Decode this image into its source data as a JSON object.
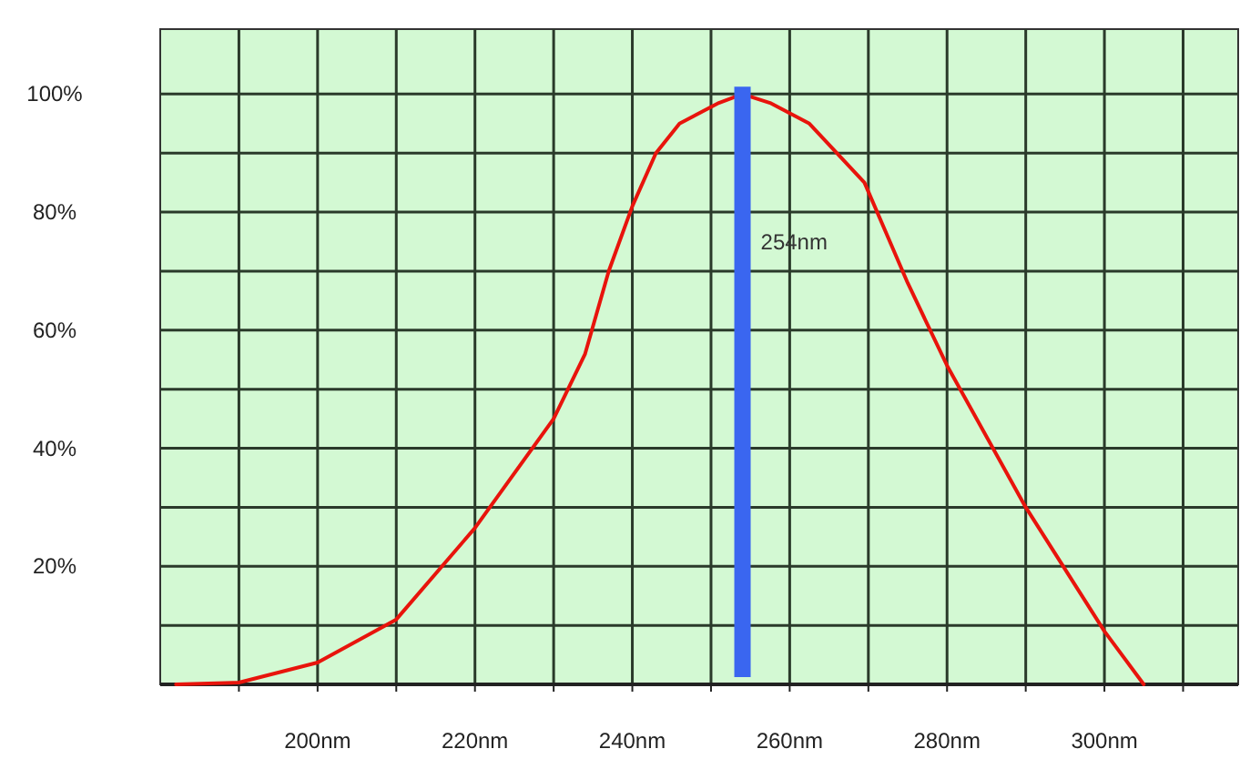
{
  "chart_data": {
    "type": "line",
    "x": [
      182,
      190,
      200,
      210,
      220,
      230,
      234,
      237,
      240,
      243,
      246,
      251,
      254,
      257.5,
      262.5,
      269.5,
      275,
      280,
      290,
      300,
      305
    ],
    "series": [
      {
        "color": "#e8140c",
        "values": [
          0,
          0.3,
          3.7,
          11,
          26.5,
          45,
          56,
          70,
          81,
          90,
          95,
          98.5,
          100,
          98.5,
          95,
          85,
          68,
          54,
          30,
          9,
          0
        ]
      }
    ],
    "xlim": [
      180,
      317
    ],
    "ylim": [
      0,
      111
    ],
    "xticks": [
      {
        "value": 190,
        "label": null
      },
      {
        "value": 200,
        "label": "200nm"
      },
      {
        "value": 210,
        "label": null
      },
      {
        "value": 220,
        "label": "220nm"
      },
      {
        "value": 230,
        "label": null
      },
      {
        "value": 240,
        "label": "240nm"
      },
      {
        "value": 250,
        "label": null
      },
      {
        "value": 260,
        "label": "260nm"
      },
      {
        "value": 270,
        "label": null
      },
      {
        "value": 280,
        "label": "280nm"
      },
      {
        "value": 290,
        "label": null
      },
      {
        "value": 300,
        "label": "300nm"
      },
      {
        "value": 310,
        "label": null
      }
    ],
    "yticks": [
      {
        "value": 10,
        "label": null
      },
      {
        "value": 20,
        "label": "20%"
      },
      {
        "value": 30,
        "label": null
      },
      {
        "value": 40,
        "label": "40%"
      },
      {
        "value": 50,
        "label": null
      },
      {
        "value": 60,
        "label": "60%"
      },
      {
        "value": 70,
        "label": null
      },
      {
        "value": 80,
        "label": "80%"
      },
      {
        "value": 90,
        "label": null
      },
      {
        "value": 100,
        "label": "100%"
      }
    ],
    "ref_lines": [
      {
        "axis": "x",
        "value": 254,
        "label": "254nm",
        "color": "#3a66f0"
      }
    ],
    "grid": true,
    "marker": "none",
    "line_style": "solid"
  }
}
